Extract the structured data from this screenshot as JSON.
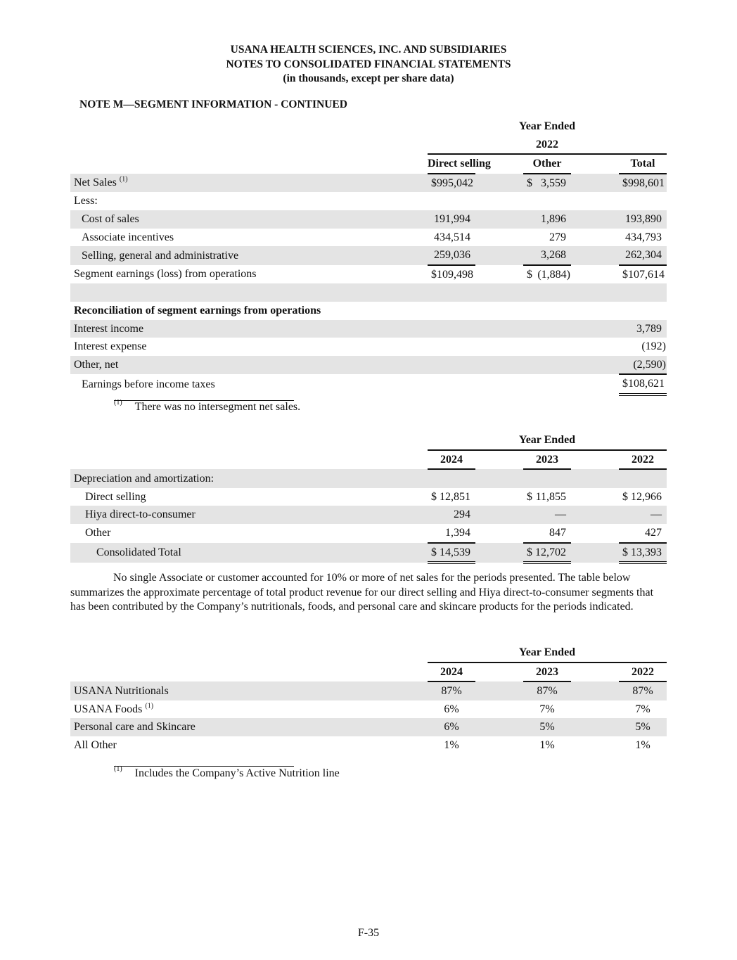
{
  "header": {
    "line1": "USANA HEALTH SCIENCES, INC. AND SUBSIDIARIES",
    "line2": "NOTES TO CONSOLIDATED FINANCIAL STATEMENTS",
    "line3": "(in thousands, except per share data)"
  },
  "note_title": "NOTE M—SEGMENT INFORMATION - CONTINUED",
  "table1": {
    "period_label": "Year Ended",
    "year": "2022",
    "columns": [
      "Direct selling",
      "Other",
      "Total"
    ],
    "rows": [
      {
        "label": "Net Sales",
        "sup": "(1)",
        "cells": [
          {
            "d": "$",
            "v": "995,042"
          },
          {
            "d": "$",
            "v": "3,559"
          },
          {
            "d": "$",
            "v": "998,601"
          }
        ]
      },
      {
        "label": "Less:",
        "cells": []
      },
      {
        "label": "Cost of sales",
        "indent": 1,
        "cells": [
          {
            "v": "191,994"
          },
          {
            "v": "1,896"
          },
          {
            "v": "193,890"
          }
        ]
      },
      {
        "label": "Associate incentives",
        "indent": 1,
        "cells": [
          {
            "v": "434,514"
          },
          {
            "v": "279"
          },
          {
            "v": "434,793"
          }
        ]
      },
      {
        "label": "Selling, general and administrative",
        "indent": 1,
        "cells": [
          {
            "v": "259,036"
          },
          {
            "v": "3,268"
          },
          {
            "v": "262,304"
          }
        ]
      },
      {
        "label": "Segment earnings (loss) from operations",
        "cells": [
          {
            "d": "$",
            "v": "109,498"
          },
          {
            "d": "$",
            "v": "(1,884)"
          },
          {
            "d": "$",
            "v": "107,614"
          }
        ]
      },
      {
        "label": "",
        "cells": []
      },
      {
        "label": "Reconciliation of segment earnings from operations",
        "bold": true,
        "cells": []
      },
      {
        "label": "Interest income",
        "cells": [
          null,
          null,
          {
            "v": "3,789"
          }
        ]
      },
      {
        "label": "Interest expense",
        "cells": [
          null,
          null,
          {
            "v": "(192)"
          }
        ]
      },
      {
        "label": "Other, net",
        "cells": [
          null,
          null,
          {
            "v": "(2,590)"
          }
        ]
      },
      {
        "label": "Earnings before income taxes",
        "indent": 1,
        "cells": [
          null,
          null,
          {
            "d": "$",
            "v": "108,621"
          }
        ]
      }
    ]
  },
  "footnote1": {
    "marker": "(1)",
    "text": "There was no intersegment net sales."
  },
  "table2": {
    "period_label": "Year Ended",
    "columns": [
      "2024",
      "2023",
      "2022"
    ],
    "rows": [
      {
        "label": "Depreciation and amortization:",
        "cells": []
      },
      {
        "label": "Direct selling",
        "indent": 1,
        "cells": [
          {
            "d": "$",
            "v": "12,851"
          },
          {
            "d": "$",
            "v": "11,855"
          },
          {
            "d": "$",
            "v": "12,966"
          }
        ]
      },
      {
        "label": "Hiya direct-to-consumer",
        "indent": 1,
        "cells": [
          {
            "v": "294"
          },
          {
            "v": "—"
          },
          {
            "v": "—"
          }
        ]
      },
      {
        "label": "Other",
        "indent": 1,
        "cells": [
          {
            "v": "1,394"
          },
          {
            "v": "847"
          },
          {
            "v": "427"
          }
        ]
      },
      {
        "label": "Consolidated Total",
        "indent": 2,
        "cells": [
          {
            "d": "$",
            "v": "14,539"
          },
          {
            "d": "$",
            "v": "12,702"
          },
          {
            "d": "$",
            "v": "13,393"
          }
        ]
      }
    ]
  },
  "paragraph": "No single Associate or customer accounted for 10% or more of net sales for the periods presented. The table below summarizes the approximate percentage of total product revenue for our direct selling and Hiya direct-to-consumer segments that has been contributed by the Company’s nutritionals, foods, and personal care and skincare products for the periods indicated.",
  "table3": {
    "period_label": "Year Ended",
    "columns": [
      "2024",
      "2023",
      "2022"
    ],
    "rows": [
      {
        "label": "USANA Nutritionals",
        "cells": [
          {
            "v": "87%"
          },
          {
            "v": "87%"
          },
          {
            "v": "87%"
          }
        ]
      },
      {
        "label": "USANA Foods",
        "sup": "(1)",
        "cells": [
          {
            "v": "6%"
          },
          {
            "v": "7%"
          },
          {
            "v": "7%"
          }
        ]
      },
      {
        "label": "Personal care and Skincare",
        "cells": [
          {
            "v": "6%"
          },
          {
            "v": "5%"
          },
          {
            "v": "5%"
          }
        ]
      },
      {
        "label": "All Other",
        "cells": [
          {
            "v": "1%"
          },
          {
            "v": "1%"
          },
          {
            "v": "1%"
          }
        ]
      }
    ]
  },
  "footnote2": {
    "marker": "(1)",
    "text": "Includes the Company’s Active Nutrition line"
  },
  "page_number": "F-35"
}
